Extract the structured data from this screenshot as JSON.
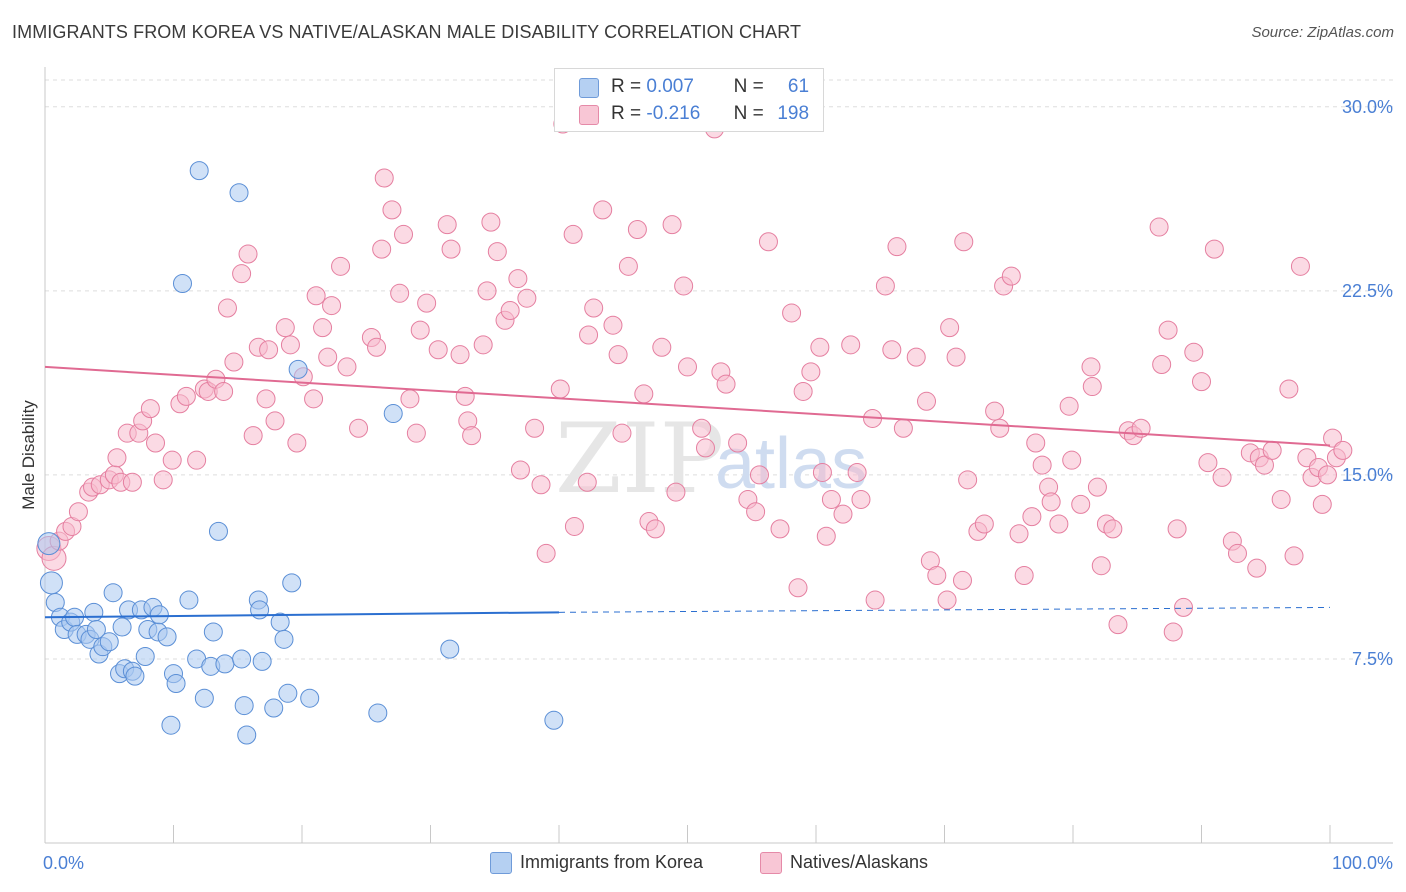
{
  "title": "IMMIGRANTS FROM KOREA VS NATIVE/ALASKAN MALE DISABILITY CORRELATION CHART",
  "source": "Source: ZipAtlas.com",
  "legend": {
    "row1": {
      "r_label": "R =",
      "r_value": "0.007",
      "n_label": "N =",
      "n_value": "61"
    },
    "row2": {
      "r_label": "R =",
      "r_value": "-0.216",
      "n_label": "N =",
      "n_value": "198"
    }
  },
  "bottom_legend": {
    "korea": "Immigrants from Korea",
    "native": "Natives/Alaskans"
  },
  "colors": {
    "korea_fill": "#a9c8f0",
    "korea_stroke": "#5b8fd6",
    "korea_line": "#2b6fd0",
    "native_fill": "#f7bccd",
    "native_stroke": "#e57fa0",
    "native_line": "#e06a92",
    "axis_label": "#4a7fd4",
    "grid": "#dddddd"
  },
  "watermark": {
    "zip": "ZIP",
    "atlas": "atlas"
  },
  "chart_data": {
    "type": "scatter",
    "xlabel": "",
    "ylabel": "Male Disability",
    "xlim": [
      0,
      100
    ],
    "ylim": [
      0,
      31.5
    ],
    "x_tick_labels": [
      "0.0%",
      "100.0%"
    ],
    "y_ticks": [
      7.5,
      15.0,
      22.5,
      30.0
    ],
    "y_tick_labels": [
      "7.5%",
      "15.0%",
      "22.5%",
      "30.0%"
    ],
    "series": [
      {
        "name": "Immigrants from Korea",
        "trend": {
          "x0": 0,
          "y0": 9.2,
          "x1": 40,
          "y1": 9.4,
          "dash_to": 100,
          "dash_y1": 9.6
        },
        "points": [
          [
            0.3,
            12.2
          ],
          [
            0.5,
            10.6
          ],
          [
            0.8,
            9.8
          ],
          [
            1.2,
            9.2
          ],
          [
            1.5,
            8.7
          ],
          [
            2,
            9.0
          ],
          [
            2.3,
            9.2
          ],
          [
            2.5,
            8.5
          ],
          [
            3.2,
            8.5
          ],
          [
            3.5,
            8.3
          ],
          [
            3.8,
            9.4
          ],
          [
            4,
            8.7
          ],
          [
            4.2,
            7.7
          ],
          [
            4.5,
            8.0
          ],
          [
            5,
            8.2
          ],
          [
            5.3,
            10.2
          ],
          [
            5.8,
            6.9
          ],
          [
            6,
            8.8
          ],
          [
            6.2,
            7.1
          ],
          [
            6.5,
            9.5
          ],
          [
            6.8,
            7.0
          ],
          [
            7,
            6.8
          ],
          [
            7.5,
            9.5
          ],
          [
            7.8,
            7.6
          ],
          [
            8,
            8.7
          ],
          [
            8.4,
            9.6
          ],
          [
            8.8,
            8.6
          ],
          [
            8.9,
            9.3
          ],
          [
            9.5,
            8.4
          ],
          [
            9.8,
            4.8
          ],
          [
            10,
            6.9
          ],
          [
            10.2,
            6.5
          ],
          [
            10.7,
            22.8
          ],
          [
            11.2,
            9.9
          ],
          [
            11.8,
            7.5
          ],
          [
            12,
            27.4
          ],
          [
            12.4,
            5.9
          ],
          [
            12.9,
            7.2
          ],
          [
            13.1,
            8.6
          ],
          [
            13.5,
            12.7
          ],
          [
            14,
            7.3
          ],
          [
            15.1,
            26.5
          ],
          [
            15.3,
            7.5
          ],
          [
            15.5,
            5.6
          ],
          [
            15.7,
            4.4
          ],
          [
            16.6,
            9.9
          ],
          [
            16.7,
            9.5
          ],
          [
            16.9,
            7.4
          ],
          [
            17.8,
            5.5
          ],
          [
            18.3,
            9.0
          ],
          [
            18.6,
            8.3
          ],
          [
            18.9,
            6.1
          ],
          [
            19.2,
            10.6
          ],
          [
            19.7,
            19.3
          ],
          [
            20.6,
            5.9
          ],
          [
            25.9,
            5.3
          ],
          [
            27.1,
            17.5
          ],
          [
            31.5,
            7.9
          ],
          [
            39.6,
            5.0
          ]
        ]
      },
      {
        "name": "Natives/Alaskans",
        "trend": {
          "x0": 0,
          "y0": 19.4,
          "x1": 100,
          "y1": 16.2
        },
        "points": [
          [
            0.3,
            12.0
          ],
          [
            0.7,
            11.6
          ],
          [
            1.1,
            12.3
          ],
          [
            1.6,
            12.7
          ],
          [
            2.1,
            12.9
          ],
          [
            2.6,
            13.5
          ],
          [
            3.4,
            14.3
          ],
          [
            3.7,
            14.5
          ],
          [
            4.3,
            14.6
          ],
          [
            5,
            14.8
          ],
          [
            5.4,
            15.0
          ],
          [
            5.6,
            15.7
          ],
          [
            5.9,
            14.7
          ],
          [
            6.4,
            16.7
          ],
          [
            6.8,
            14.7
          ],
          [
            7.3,
            16.7
          ],
          [
            7.6,
            17.2
          ],
          [
            8.2,
            17.7
          ],
          [
            8.6,
            16.3
          ],
          [
            9.2,
            14.8
          ],
          [
            9.9,
            15.6
          ],
          [
            10.5,
            17.9
          ],
          [
            11,
            18.2
          ],
          [
            11.8,
            15.6
          ],
          [
            12.4,
            18.5
          ],
          [
            12.7,
            18.4
          ],
          [
            13.3,
            18.9
          ],
          [
            13.9,
            18.4
          ],
          [
            14.2,
            21.8
          ],
          [
            14.7,
            19.6
          ],
          [
            15.3,
            23.2
          ],
          [
            15.8,
            24.0
          ],
          [
            16.2,
            16.6
          ],
          [
            16.6,
            20.2
          ],
          [
            17.2,
            18.1
          ],
          [
            17.4,
            20.1
          ],
          [
            17.9,
            17.2
          ],
          [
            18.7,
            21.0
          ],
          [
            19.1,
            20.3
          ],
          [
            19.6,
            16.3
          ],
          [
            20.1,
            19.0
          ],
          [
            20.9,
            18.1
          ],
          [
            21.1,
            22.3
          ],
          [
            21.6,
            21.0
          ],
          [
            22,
            19.8
          ],
          [
            22.3,
            21.9
          ],
          [
            23,
            23.5
          ],
          [
            23.5,
            19.4
          ],
          [
            24.4,
            16.9
          ],
          [
            25.4,
            20.6
          ],
          [
            25.8,
            20.2
          ],
          [
            26.2,
            24.2
          ],
          [
            26.4,
            27.1
          ],
          [
            27,
            25.8
          ],
          [
            27.6,
            22.4
          ],
          [
            27.9,
            24.8
          ],
          [
            28.4,
            18.1
          ],
          [
            28.9,
            16.7
          ],
          [
            29.2,
            20.9
          ],
          [
            29.7,
            22.0
          ],
          [
            30.6,
            20.1
          ],
          [
            31.3,
            25.2
          ],
          [
            31.6,
            24.2
          ],
          [
            32.3,
            19.9
          ],
          [
            32.7,
            18.2
          ],
          [
            32.9,
            17.2
          ],
          [
            33.2,
            16.6
          ],
          [
            34.1,
            20.3
          ],
          [
            34.4,
            22.5
          ],
          [
            34.7,
            25.3
          ],
          [
            35.2,
            24.1
          ],
          [
            35.8,
            21.3
          ],
          [
            36.2,
            21.7
          ],
          [
            36.8,
            23.0
          ],
          [
            37,
            15.2
          ],
          [
            37.5,
            22.2
          ],
          [
            38.1,
            16.9
          ],
          [
            38.6,
            14.6
          ],
          [
            39,
            11.8
          ],
          [
            40.1,
            18.5
          ],
          [
            40.3,
            29.3
          ],
          [
            41.1,
            24.8
          ],
          [
            41.2,
            12.9
          ],
          [
            42.2,
            14.7
          ],
          [
            42.3,
            20.7
          ],
          [
            42.7,
            21.8
          ],
          [
            43.4,
            25.8
          ],
          [
            44.2,
            21.1
          ],
          [
            44.6,
            19.9
          ],
          [
            44.9,
            16.7
          ],
          [
            45.4,
            23.5
          ],
          [
            46.1,
            25.0
          ],
          [
            46.6,
            18.3
          ],
          [
            47,
            13.1
          ],
          [
            47.5,
            12.8
          ],
          [
            48,
            20.2
          ],
          [
            48.8,
            25.2
          ],
          [
            49.1,
            14.3
          ],
          [
            49.7,
            22.7
          ],
          [
            50,
            19.4
          ],
          [
            51.1,
            16.9
          ],
          [
            51.4,
            16.1
          ],
          [
            52.1,
            29.1
          ],
          [
            52.6,
            19.2
          ],
          [
            53,
            18.7
          ],
          [
            53.9,
            16.3
          ],
          [
            54.7,
            14.0
          ],
          [
            55.3,
            13.5
          ],
          [
            55.6,
            15.0
          ],
          [
            56.3,
            24.5
          ],
          [
            57.2,
            12.8
          ],
          [
            58.1,
            21.6
          ],
          [
            58.6,
            10.4
          ],
          [
            59,
            18.4
          ],
          [
            59.6,
            19.2
          ],
          [
            60.3,
            20.2
          ],
          [
            60.5,
            15.1
          ],
          [
            60.8,
            12.5
          ],
          [
            61.2,
            14.0
          ],
          [
            62.1,
            13.4
          ],
          [
            62.7,
            20.3
          ],
          [
            63.2,
            15.1
          ],
          [
            63.5,
            14.0
          ],
          [
            64.4,
            17.3
          ],
          [
            64.6,
            9.9
          ],
          [
            65.4,
            22.7
          ],
          [
            65.9,
            20.1
          ],
          [
            66.3,
            24.3
          ],
          [
            66.8,
            16.9
          ],
          [
            67.8,
            19.8
          ],
          [
            68.6,
            18.0
          ],
          [
            68.9,
            11.5
          ],
          [
            69.4,
            10.9
          ],
          [
            70.2,
            9.9
          ],
          [
            70.4,
            21.0
          ],
          [
            70.9,
            19.8
          ],
          [
            71.4,
            10.7
          ],
          [
            71.5,
            24.5
          ],
          [
            71.8,
            14.8
          ],
          [
            72.6,
            12.7
          ],
          [
            73.1,
            13.0
          ],
          [
            73.9,
            17.6
          ],
          [
            74.3,
            16.9
          ],
          [
            74.6,
            22.7
          ],
          [
            75.2,
            23.1
          ],
          [
            75.8,
            12.6
          ],
          [
            76.2,
            10.9
          ],
          [
            76.8,
            13.3
          ],
          [
            77.1,
            16.3
          ],
          [
            77.6,
            15.4
          ],
          [
            78.1,
            14.5
          ],
          [
            78.3,
            13.9
          ],
          [
            78.9,
            13.0
          ],
          [
            79.7,
            17.8
          ],
          [
            79.9,
            15.6
          ],
          [
            80.6,
            13.8
          ],
          [
            81.4,
            19.4
          ],
          [
            81.5,
            18.6
          ],
          [
            81.9,
            14.5
          ],
          [
            82.2,
            11.3
          ],
          [
            82.6,
            13.0
          ],
          [
            83.1,
            12.8
          ],
          [
            83.5,
            8.9
          ],
          [
            84.3,
            16.8
          ],
          [
            84.7,
            16.6
          ],
          [
            85.3,
            16.9
          ],
          [
            86.7,
            25.1
          ],
          [
            86.9,
            19.5
          ],
          [
            87.4,
            20.9
          ],
          [
            87.8,
            8.6
          ],
          [
            88.1,
            12.8
          ],
          [
            88.6,
            9.6
          ],
          [
            89.4,
            20.0
          ],
          [
            90,
            18.8
          ],
          [
            90.5,
            15.5
          ],
          [
            91,
            24.2
          ],
          [
            91.6,
            14.9
          ],
          [
            92.4,
            12.3
          ],
          [
            92.8,
            11.8
          ],
          [
            93.8,
            15.9
          ],
          [
            94.3,
            11.2
          ],
          [
            94.5,
            15.7
          ],
          [
            94.9,
            15.4
          ],
          [
            95.5,
            16.0
          ],
          [
            96.2,
            14.0
          ],
          [
            96.8,
            18.5
          ],
          [
            97.2,
            11.7
          ],
          [
            97.7,
            23.5
          ],
          [
            98.2,
            15.7
          ],
          [
            98.6,
            14.9
          ],
          [
            99.1,
            15.3
          ],
          [
            99.4,
            13.8
          ],
          [
            99.8,
            15.0
          ],
          [
            100.2,
            16.5
          ],
          [
            100.5,
            15.7
          ],
          [
            101,
            16.0
          ]
        ]
      }
    ]
  }
}
